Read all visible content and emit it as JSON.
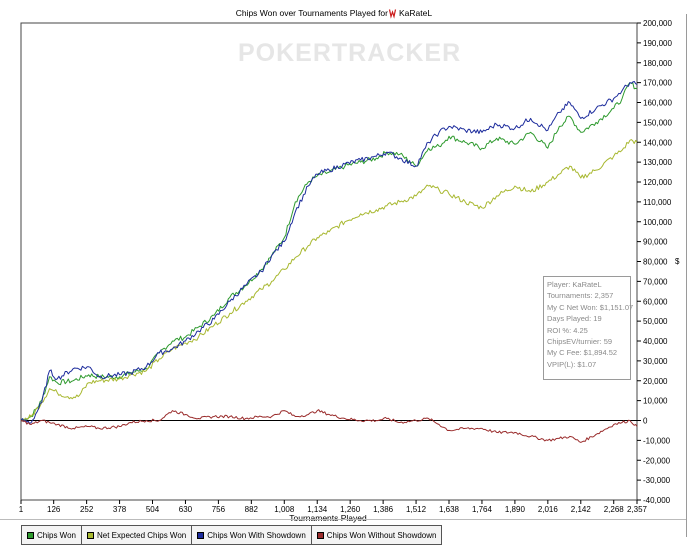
{
  "chart_data": {
    "type": "line",
    "title_prefix": "Chips Won over Tournaments Played for",
    "player_name": "KaRateL",
    "watermark": "POKERTRACKER",
    "xlabel": "Tournaments Played",
    "ylabel": "",
    "unit_symbol": "$",
    "xlim": [
      1,
      2357
    ],
    "ylim": [
      -40000,
      200000
    ],
    "x_ticks": [
      "1",
      "126",
      "252",
      "378",
      "504",
      "630",
      "756",
      "882",
      "1,008",
      "1,134",
      "1,260",
      "1,386",
      "1,512",
      "1,638",
      "1,764",
      "1,890",
      "2,016",
      "2,142",
      "2,268",
      "2,357"
    ],
    "y_ticks": [
      "200,000",
      "190,000",
      "180,000",
      "170,000",
      "160,000",
      "150,000",
      "140,000",
      "130,000",
      "120,000",
      "110,000",
      "100,000",
      "90,000",
      "80,000",
      "70,000",
      "60,000",
      "50,000",
      "40,000",
      "30,000",
      "20,000",
      "10,000",
      "0",
      "-10,000",
      "-20,000",
      "-30,000",
      "-40,000"
    ],
    "series": [
      {
        "name": "Chips Won",
        "color": "#2e9a2e",
        "points": [
          [
            1,
            0
          ],
          [
            40,
            2000
          ],
          [
            80,
            10000
          ],
          [
            110,
            22000
          ],
          [
            140,
            19000
          ],
          [
            200,
            20000
          ],
          [
            260,
            23000
          ],
          [
            300,
            22000
          ],
          [
            378,
            22000
          ],
          [
            420,
            24000
          ],
          [
            480,
            26000
          ],
          [
            530,
            34000
          ],
          [
            580,
            40000
          ],
          [
            630,
            42000
          ],
          [
            680,
            47000
          ],
          [
            740,
            53000
          ],
          [
            800,
            62000
          ],
          [
            860,
            68000
          ],
          [
            920,
            76000
          ],
          [
            960,
            83000
          ],
          [
            1008,
            92000
          ],
          [
            1050,
            110000
          ],
          [
            1100,
            120000
          ],
          [
            1134,
            123000
          ],
          [
            1180,
            125000
          ],
          [
            1240,
            128000
          ],
          [
            1300,
            130000
          ],
          [
            1360,
            132000
          ],
          [
            1400,
            135000
          ],
          [
            1450,
            134000
          ],
          [
            1512,
            128000
          ],
          [
            1560,
            137000
          ],
          [
            1600,
            138000
          ],
          [
            1638,
            143000
          ],
          [
            1700,
            140000
          ],
          [
            1764,
            137000
          ],
          [
            1820,
            142000
          ],
          [
            1890,
            139000
          ],
          [
            1950,
            145000
          ],
          [
            2016,
            137000
          ],
          [
            2060,
            148000
          ],
          [
            2100,
            153000
          ],
          [
            2142,
            145000
          ],
          [
            2200,
            150000
          ],
          [
            2268,
            157000
          ],
          [
            2300,
            162000
          ],
          [
            2330,
            170000
          ],
          [
            2357,
            167000
          ]
        ]
      },
      {
        "name": "Net Expected Chips Won",
        "color": "#a8b830",
        "points": [
          [
            1,
            0
          ],
          [
            40,
            2000
          ],
          [
            80,
            9000
          ],
          [
            110,
            16000
          ],
          [
            140,
            14000
          ],
          [
            180,
            12000
          ],
          [
            220,
            12000
          ],
          [
            260,
            19000
          ],
          [
            300,
            20000
          ],
          [
            378,
            21000
          ],
          [
            420,
            23000
          ],
          [
            480,
            25000
          ],
          [
            530,
            31000
          ],
          [
            580,
            36000
          ],
          [
            630,
            39000
          ],
          [
            680,
            42000
          ],
          [
            740,
            48000
          ],
          [
            800,
            54000
          ],
          [
            860,
            60000
          ],
          [
            920,
            66000
          ],
          [
            960,
            70000
          ],
          [
            1008,
            76000
          ],
          [
            1050,
            82000
          ],
          [
            1100,
            88000
          ],
          [
            1134,
            92000
          ],
          [
            1180,
            95000
          ],
          [
            1240,
            100000
          ],
          [
            1300,
            104000
          ],
          [
            1360,
            106000
          ],
          [
            1400,
            108000
          ],
          [
            1450,
            110000
          ],
          [
            1512,
            113000
          ],
          [
            1560,
            118000
          ],
          [
            1600,
            116000
          ],
          [
            1638,
            114000
          ],
          [
            1700,
            110000
          ],
          [
            1764,
            107000
          ],
          [
            1820,
            113000
          ],
          [
            1890,
            118000
          ],
          [
            1950,
            115000
          ],
          [
            2016,
            120000
          ],
          [
            2060,
            124000
          ],
          [
            2100,
            128000
          ],
          [
            2142,
            122000
          ],
          [
            2200,
            126000
          ],
          [
            2268,
            133000
          ],
          [
            2300,
            136000
          ],
          [
            2330,
            141000
          ],
          [
            2357,
            140000
          ]
        ]
      },
      {
        "name": "Chips Won With Showdown",
        "color": "#1c2b9c",
        "points": [
          [
            1,
            0
          ],
          [
            40,
            -1000
          ],
          [
            80,
            9000
          ],
          [
            110,
            25000
          ],
          [
            140,
            21000
          ],
          [
            200,
            26000
          ],
          [
            260,
            27000
          ],
          [
            300,
            22000
          ],
          [
            378,
            23000
          ],
          [
            420,
            24000
          ],
          [
            480,
            27000
          ],
          [
            530,
            34000
          ],
          [
            580,
            36000
          ],
          [
            630,
            40000
          ],
          [
            680,
            45000
          ],
          [
            740,
            51000
          ],
          [
            800,
            60000
          ],
          [
            860,
            68000
          ],
          [
            920,
            75000
          ],
          [
            960,
            83000
          ],
          [
            1008,
            90000
          ],
          [
            1050,
            105000
          ],
          [
            1100,
            118000
          ],
          [
            1134,
            124000
          ],
          [
            1180,
            126000
          ],
          [
            1240,
            129000
          ],
          [
            1300,
            131000
          ],
          [
            1360,
            133000
          ],
          [
            1400,
            135000
          ],
          [
            1450,
            132000
          ],
          [
            1512,
            128000
          ],
          [
            1560,
            140000
          ],
          [
            1600,
            145000
          ],
          [
            1638,
            148000
          ],
          [
            1700,
            146000
          ],
          [
            1764,
            145000
          ],
          [
            1820,
            149000
          ],
          [
            1890,
            147000
          ],
          [
            1950,
            152000
          ],
          [
            2016,
            146000
          ],
          [
            2060,
            155000
          ],
          [
            2100,
            160000
          ],
          [
            2142,
            152000
          ],
          [
            2200,
            157000
          ],
          [
            2268,
            162000
          ],
          [
            2300,
            166000
          ],
          [
            2330,
            170000
          ],
          [
            2357,
            169000
          ]
        ]
      },
      {
        "name": "Chips Won Without Showdown",
        "color": "#9a2c2c",
        "points": [
          [
            1,
            0
          ],
          [
            40,
            -2000
          ],
          [
            80,
            0
          ],
          [
            110,
            -1000
          ],
          [
            140,
            -2000
          ],
          [
            200,
            -4000
          ],
          [
            260,
            -3000
          ],
          [
            300,
            -4000
          ],
          [
            378,
            -3000
          ],
          [
            420,
            -1000
          ],
          [
            480,
            0
          ],
          [
            530,
            0
          ],
          [
            580,
            5000
          ],
          [
            630,
            3000
          ],
          [
            680,
            1000
          ],
          [
            740,
            2000
          ],
          [
            800,
            2000
          ],
          [
            860,
            1000
          ],
          [
            920,
            2000
          ],
          [
            960,
            2000
          ],
          [
            1008,
            5000
          ],
          [
            1050,
            2000
          ],
          [
            1100,
            3000
          ],
          [
            1134,
            5000
          ],
          [
            1180,
            3000
          ],
          [
            1240,
            1000
          ],
          [
            1300,
            0
          ],
          [
            1360,
            0
          ],
          [
            1400,
            1000
          ],
          [
            1450,
            -1000
          ],
          [
            1512,
            0
          ],
          [
            1560,
            1000
          ],
          [
            1600,
            -2000
          ],
          [
            1638,
            -5000
          ],
          [
            1700,
            -4000
          ],
          [
            1764,
            -4000
          ],
          [
            1820,
            -6000
          ],
          [
            1890,
            -6000
          ],
          [
            1950,
            -8000
          ],
          [
            2016,
            -10000
          ],
          [
            2060,
            -9000
          ],
          [
            2100,
            -8000
          ],
          [
            2142,
            -11000
          ],
          [
            2200,
            -7000
          ],
          [
            2268,
            -2000
          ],
          [
            2300,
            -1000
          ],
          [
            2330,
            0
          ],
          [
            2357,
            -3000
          ]
        ]
      }
    ]
  },
  "stats": {
    "lines": [
      "Player: KaRateL",
      "Tournaments: 2,357",
      "My C Net Won: $1,151.07",
      "Days Played: 19",
      "ROI %: 4.25",
      "ChipsEV/turnier: 59",
      "My C Fee: $1,894.52",
      "VPIP(L): $1.07"
    ]
  },
  "legend": {
    "items": [
      {
        "label": "Chips Won",
        "color": "#2e9a2e"
      },
      {
        "label": "Net Expected Chips Won",
        "color": "#a8b830"
      },
      {
        "label": "Chips Won With Showdown",
        "color": "#1c2b9c"
      },
      {
        "label": "Chips Won Without Showdown",
        "color": "#9a2c2c"
      }
    ]
  }
}
